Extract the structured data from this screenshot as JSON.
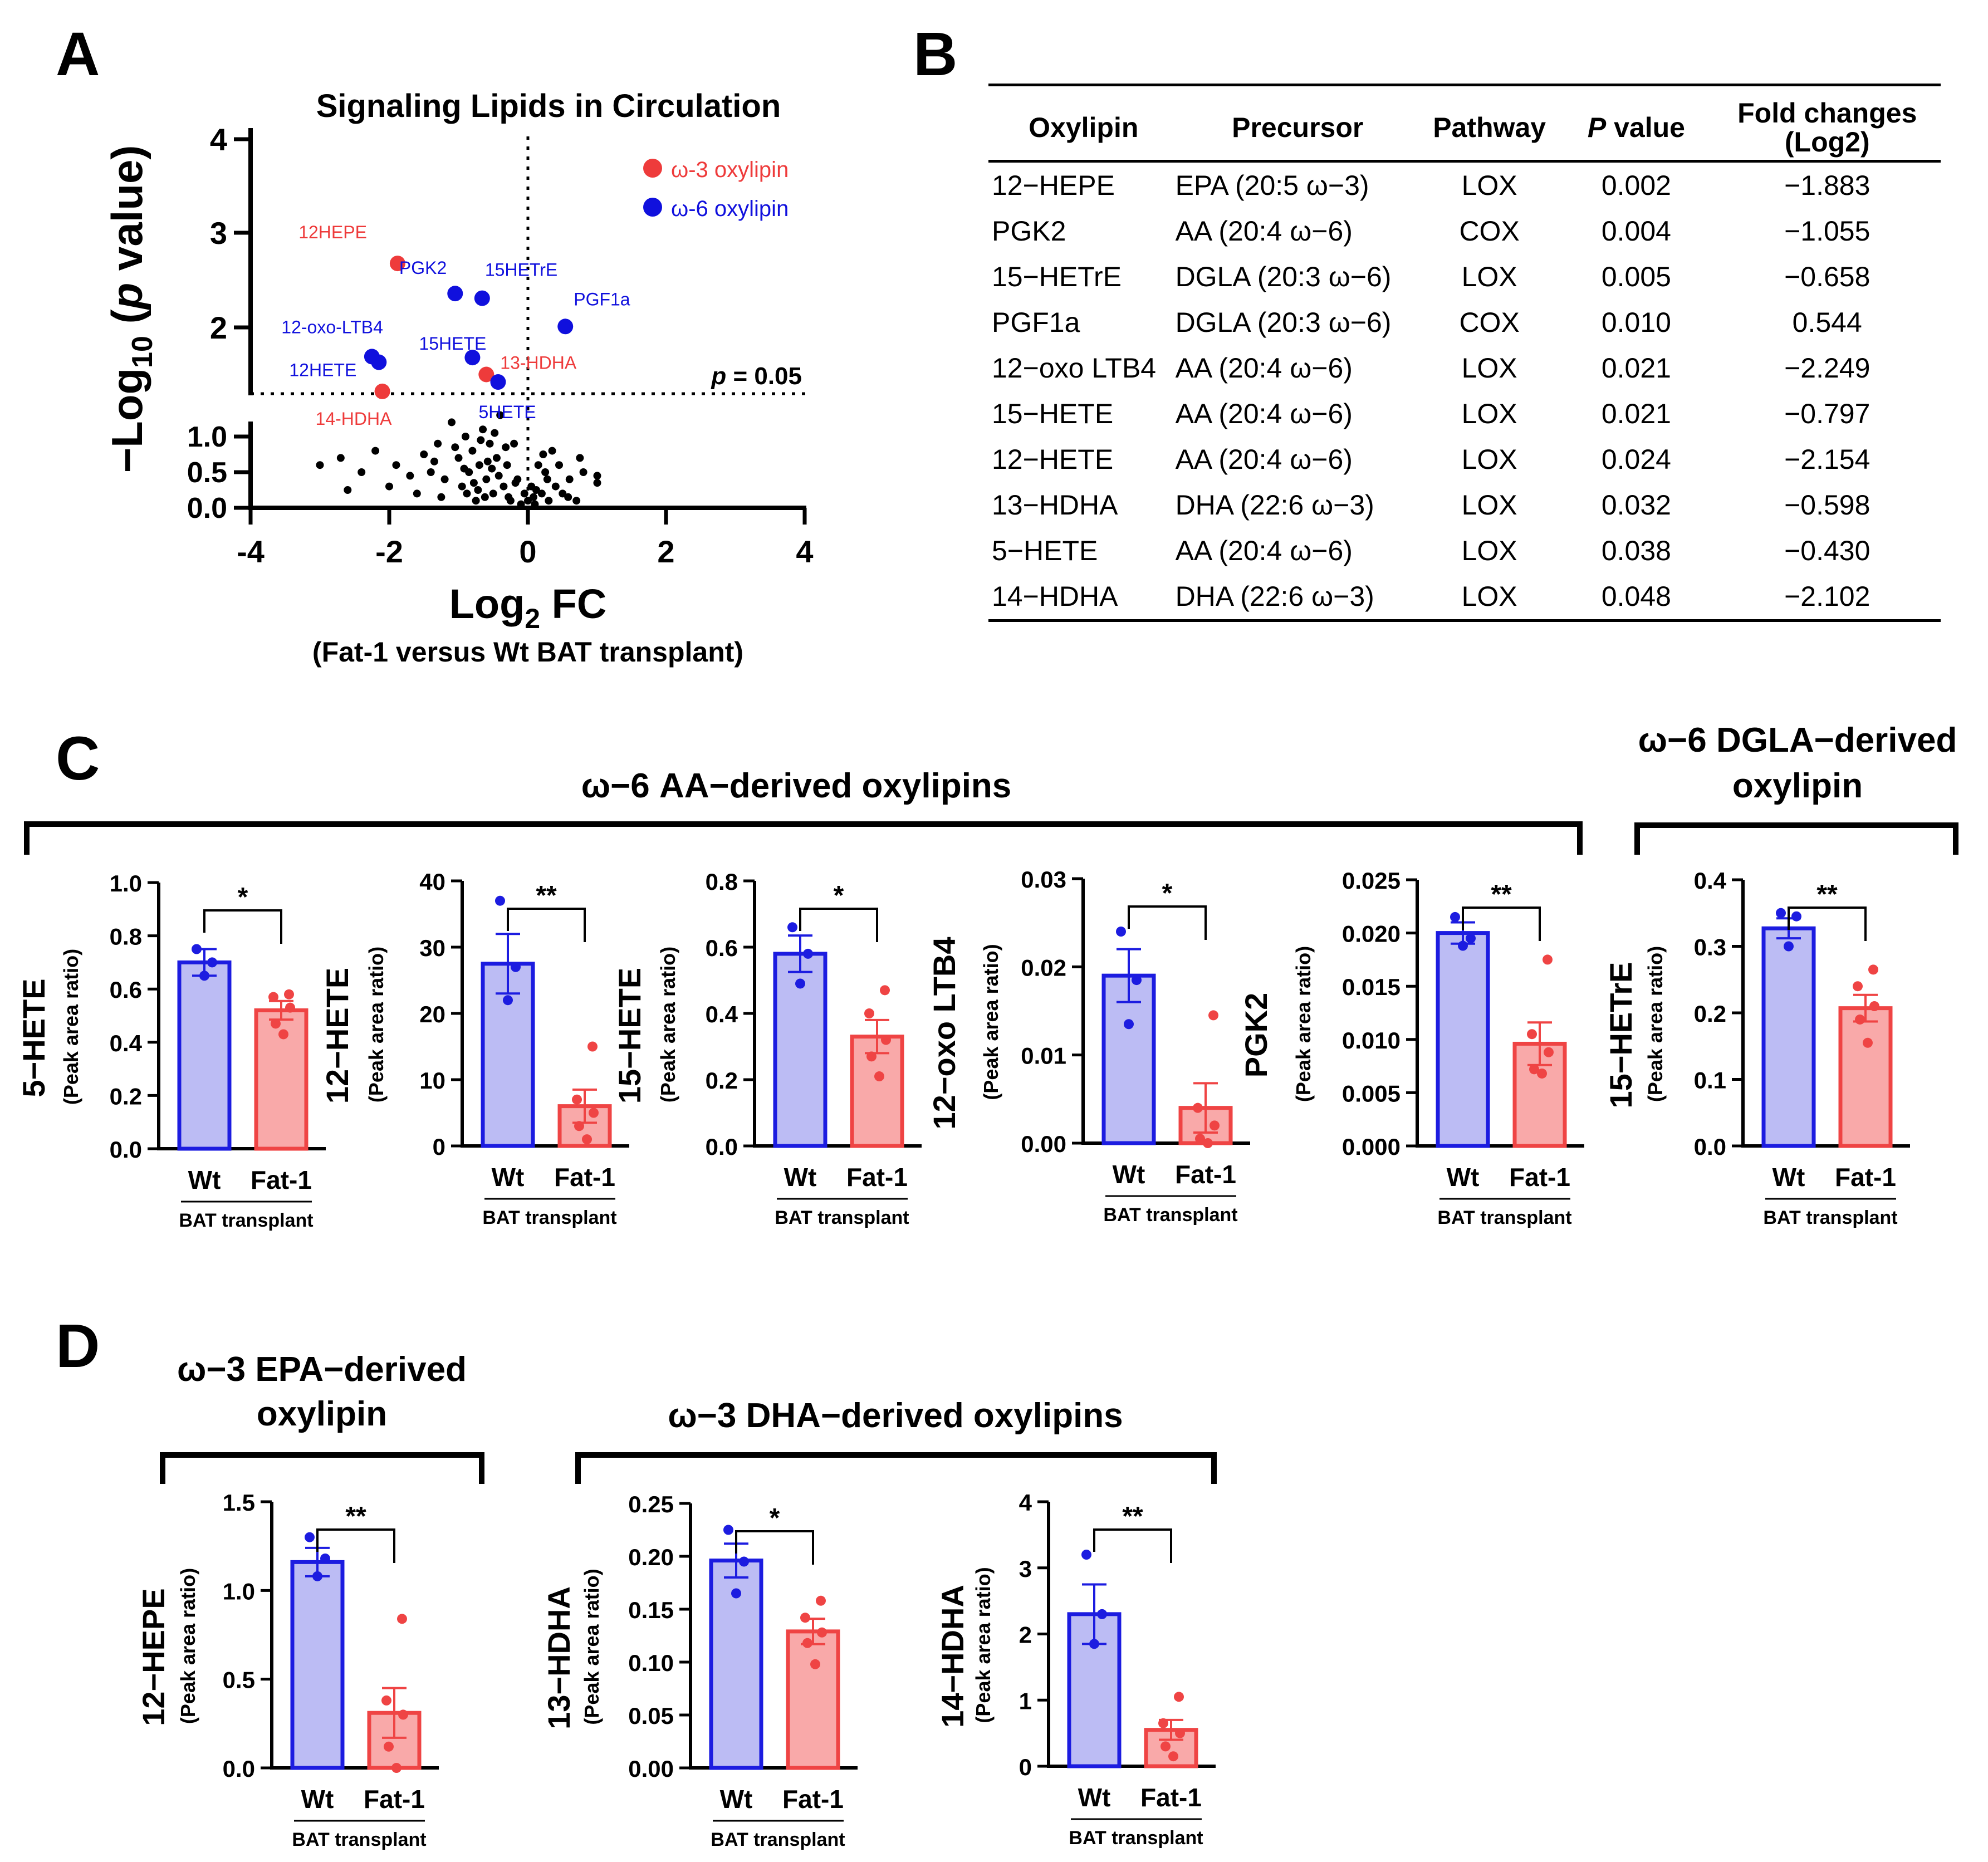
{
  "panels": {
    "A": "A",
    "B": "B",
    "C": "C",
    "D": "D"
  },
  "volcano": {
    "title": "Signaling Lipids in Circulation",
    "ylabel_pre": "−Log",
    "ylabel_sub": "10",
    "ylabel_open": " (",
    "ylabel_p": "p",
    "ylabel_close": " value)",
    "xlabel_pre": "Log",
    "xlabel_sub": "2",
    "xlabel_post": " FC",
    "xlabel_note": "(Fat-1 versus Wt BAT transplant)",
    "xticks": [
      "-4",
      "-2",
      "0",
      "2",
      "4"
    ],
    "yticks_upper": [
      "2",
      "3",
      "4"
    ],
    "yticks_lower": [
      "0.0",
      "0.5",
      "1.0"
    ],
    "threshold_p": "p",
    "threshold_value": " = 0.05",
    "legend": {
      "omega3": "ω-3 oxylipin",
      "omega6": "ω-6 oxylipin",
      "omega3_color": "#ee3b3b",
      "omega6_color": "#1010dd"
    },
    "labeled_points": [
      {
        "label": "12HEPE",
        "x": -1.88,
        "y": 2.68,
        "cls": "omega3"
      },
      {
        "label": "PGK2",
        "x": -1.05,
        "y": 2.36,
        "cls": "omega6"
      },
      {
        "label": "15HETrE",
        "x": -0.66,
        "y": 2.31,
        "cls": "omega6"
      },
      {
        "label": "PGF1a",
        "x": 0.54,
        "y": 2.01,
        "cls": "omega6"
      },
      {
        "label": "12-oxo-LTB4",
        "x": -2.25,
        "y": 1.69,
        "cls": "omega6"
      },
      {
        "label": "15HETE",
        "x": -0.8,
        "y": 1.68,
        "cls": "omega6"
      },
      {
        "label": "12HETE",
        "x": -2.15,
        "y": 1.63,
        "cls": "omega6"
      },
      {
        "label": "13-HDHA",
        "x": -0.6,
        "y": 1.5,
        "cls": "omega3"
      },
      {
        "label": "5HETE",
        "x": -0.43,
        "y": 1.42,
        "cls": "omega6"
      },
      {
        "label": "14-HDHA",
        "x": -2.1,
        "y": 1.32,
        "cls": "omega3"
      }
    ],
    "ns_points": [
      [
        -3.0,
        0.6
      ],
      [
        -2.7,
        0.7
      ],
      [
        -2.4,
        0.5
      ],
      [
        -2.2,
        0.8
      ],
      [
        -2.0,
        0.3
      ],
      [
        -1.9,
        0.6
      ],
      [
        -1.6,
        0.2
      ],
      [
        -1.4,
        0.5
      ],
      [
        -1.3,
        0.9
      ],
      [
        -1.2,
        0.4
      ],
      [
        -1.1,
        1.2
      ],
      [
        -1.0,
        0.7
      ],
      [
        -0.95,
        0.3
      ],
      [
        -0.9,
        1.0
      ],
      [
        -0.85,
        0.5
      ],
      [
        -0.8,
        0.8
      ],
      [
        -0.75,
        0.1
      ],
      [
        -0.7,
        0.6
      ],
      [
        -0.65,
        1.1
      ],
      [
        -0.6,
        0.4
      ],
      [
        -0.55,
        0.9
      ],
      [
        -0.5,
        0.2
      ],
      [
        -0.45,
        0.7
      ],
      [
        -0.4,
        1.3
      ],
      [
        -0.35,
        0.3
      ],
      [
        -0.3,
        0.6
      ],
      [
        -0.25,
        0.1
      ],
      [
        -0.2,
        0.9
      ],
      [
        -0.15,
        0.4
      ],
      [
        -0.1,
        0.05
      ],
      [
        -0.05,
        0.2
      ],
      [
        0.0,
        0.1
      ],
      [
        0.05,
        0.3
      ],
      [
        0.1,
        0.05
      ],
      [
        0.15,
        0.6
      ],
      [
        0.2,
        0.2
      ],
      [
        0.25,
        0.5
      ],
      [
        0.3,
        0.1
      ],
      [
        0.35,
        0.8
      ],
      [
        0.4,
        0.3
      ],
      [
        0.5,
        0.2
      ],
      [
        0.6,
        0.4
      ],
      [
        0.7,
        0.1
      ],
      [
        0.8,
        0.5
      ],
      [
        1.0,
        0.45
      ],
      [
        1.0,
        0.35
      ],
      [
        -1.7,
        0.45
      ],
      [
        -1.5,
        0.75
      ],
      [
        -1.25,
        0.15
      ],
      [
        -0.92,
        0.55
      ],
      [
        -0.72,
        0.25
      ],
      [
        -0.58,
        0.65
      ],
      [
        -0.42,
        0.45
      ],
      [
        -0.32,
        0.85
      ],
      [
        -0.18,
        0.35
      ],
      [
        0.12,
        0.25
      ],
      [
        0.28,
        0.4
      ],
      [
        0.45,
        0.6
      ],
      [
        -2.6,
        0.25
      ],
      [
        -0.68,
        0.95
      ],
      [
        -1.05,
        0.85
      ],
      [
        -0.78,
        0.35
      ],
      [
        -0.52,
        0.55
      ],
      [
        -0.28,
        0.15
      ],
      [
        0.08,
        0.15
      ],
      [
        0.22,
        0.75
      ],
      [
        -1.35,
        0.65
      ],
      [
        -0.88,
        0.2
      ],
      [
        -0.62,
        0.15
      ],
      [
        -0.48,
        1.05
      ],
      [
        0.58,
        0.15
      ],
      [
        0.75,
        0.7
      ]
    ]
  },
  "table": {
    "headers": {
      "oxylipin": "Oxylipin",
      "precursor": "Precursor",
      "pathway": "Pathway",
      "p_italic": "P",
      "p_rest": " value",
      "fold_line1": "Fold changes",
      "fold_line2": "(Log2)"
    },
    "rows": [
      {
        "oxylipin": "12−HEPE",
        "precursor": "EPA (20:5 ω−3)",
        "pathway": "LOX",
        "p": "0.002",
        "fold": "−1.883"
      },
      {
        "oxylipin": "PGK2",
        "precursor": "AA (20:4 ω−6)",
        "pathway": "COX",
        "p": "0.004",
        "fold": "−1.055"
      },
      {
        "oxylipin": "15−HETrE",
        "precursor": "DGLA (20:3 ω−6)",
        "pathway": "LOX",
        "p": "0.005",
        "fold": "−0.658"
      },
      {
        "oxylipin": "PGF1a",
        "precursor": "DGLA (20:3 ω−6)",
        "pathway": "COX",
        "p": "0.010",
        "fold": "0.544"
      },
      {
        "oxylipin": "12−oxo LTB4",
        "precursor": "AA (20:4 ω−6)",
        "pathway": "LOX",
        "p": "0.021",
        "fold": "−2.249"
      },
      {
        "oxylipin": "15−HETE",
        "precursor": "AA (20:4 ω−6)",
        "pathway": "LOX",
        "p": "0.021",
        "fold": "−0.797"
      },
      {
        "oxylipin": "12−HETE",
        "precursor": "AA (20:4 ω−6)",
        "pathway": "LOX",
        "p": "0.024",
        "fold": "−2.154"
      },
      {
        "oxylipin": "13−HDHA",
        "precursor": "DHA (22:6 ω−3)",
        "pathway": "LOX",
        "p": "0.032",
        "fold": "−0.598"
      },
      {
        "oxylipin": "5−HETE",
        "precursor": "AA (20:4 ω−6)",
        "pathway": "LOX",
        "p": "0.038",
        "fold": "−0.430"
      },
      {
        "oxylipin": "14−HDHA",
        "precursor": "DHA (22:6 ω−3)",
        "pathway": "LOX",
        "p": "0.048",
        "fold": "−2.102"
      }
    ]
  },
  "groups": {
    "aa": "ω−6 AA−derived oxylipins",
    "dgla_line1": "ω−6 DGLA−derived",
    "dgla_line2": "oxylipin",
    "epa_line1": "ω−3 EPA−derived",
    "epa_line2": "oxylipin",
    "dha": "ω−3 DHA−derived oxylipins"
  },
  "bar_common": {
    "ylabel_sub": "(Peak area ratio)",
    "wt": "Wt",
    "fat": "Fat-1",
    "bat": "BAT transplant",
    "wt_color": "#1c1ce0",
    "wt_fill": "#bcbcf4",
    "fat_color": "#ef4444",
    "fat_fill": "#f9a9a9"
  },
  "chart_data": [
    {
      "type": "scatter",
      "title": "Signaling Lipids in Circulation",
      "xlabel": "Log2 FC (Fat-1 versus Wt BAT transplant)",
      "ylabel": "−Log10 (p value)",
      "xlim": [
        -4,
        4
      ],
      "ylim_lower": [
        0,
        1.2
      ],
      "ylim_upper": [
        1.3,
        4
      ],
      "threshold": "p = 0.05"
    },
    {
      "type": "bar",
      "id": "hete5",
      "ylabel": "5−HETE",
      "categories": [
        "Wt",
        "Fat-1"
      ],
      "values": [
        0.7,
        0.52
      ],
      "sem": [
        0.05,
        0.035
      ],
      "ylim": [
        0,
        1.0
      ],
      "yticks": [
        "0.0",
        "0.2",
        "0.4",
        "0.6",
        "0.8",
        "1.0"
      ],
      "wt_points": [
        0.75,
        0.7,
        0.65
      ],
      "fat_points": [
        0.58,
        0.57,
        0.53,
        0.47,
        0.43
      ],
      "sig": "*"
    },
    {
      "type": "bar",
      "id": "hete12",
      "ylabel": "12−HETE",
      "categories": [
        "Wt",
        "Fat-1"
      ],
      "values": [
        27.5,
        6.0
      ],
      "sem": [
        4.5,
        2.5
      ],
      "ylim": [
        0,
        40
      ],
      "yticks": [
        "0",
        "10",
        "20",
        "30",
        "40"
      ],
      "wt_points": [
        37,
        27,
        22
      ],
      "fat_points": [
        15,
        7,
        5,
        3,
        1
      ],
      "sig": "**"
    },
    {
      "type": "bar",
      "id": "hete15",
      "ylabel": "15−HETE",
      "categories": [
        "Wt",
        "Fat-1"
      ],
      "values": [
        0.58,
        0.33
      ],
      "sem": [
        0.055,
        0.05
      ],
      "ylim": [
        0,
        0.8
      ],
      "yticks": [
        "0.0",
        "0.2",
        "0.4",
        "0.6",
        "0.8"
      ],
      "wt_points": [
        0.66,
        0.58,
        0.49
      ],
      "fat_points": [
        0.47,
        0.4,
        0.32,
        0.27,
        0.21
      ],
      "sig": "*"
    },
    {
      "type": "bar",
      "id": "oxoltb4",
      "ylabel": "12−oxo LTB4",
      "categories": [
        "Wt",
        "Fat-1"
      ],
      "values": [
        0.019,
        0.004
      ],
      "sem": [
        0.003,
        0.0028
      ],
      "ylim": [
        0,
        0.03
      ],
      "yticks": [
        "0.00",
        "0.01",
        "0.02",
        "0.03"
      ],
      "wt_points": [
        0.024,
        0.0185,
        0.0135
      ],
      "fat_points": [
        0.0145,
        0.004,
        0.002,
        0.0005,
        0.0
      ],
      "sig": "*"
    },
    {
      "type": "bar",
      "id": "pgk2",
      "ylabel": "PGK2",
      "categories": [
        "Wt",
        "Fat-1"
      ],
      "values": [
        0.02,
        0.0096
      ],
      "sem": [
        0.001,
        0.002
      ],
      "ylim": [
        0,
        0.025
      ],
      "yticks": [
        "0.000",
        "0.005",
        "0.010",
        "0.015",
        "0.020",
        "0.025"
      ],
      "wt_points": [
        0.0215,
        0.0195,
        0.0188
      ],
      "fat_points": [
        0.0175,
        0.0105,
        0.0088,
        0.0072,
        0.0068
      ],
      "sig": "**"
    },
    {
      "type": "bar",
      "id": "hetre15",
      "ylabel": "15−HETrE",
      "categories": [
        "Wt",
        "Fat-1"
      ],
      "values": [
        0.327,
        0.207
      ],
      "sem": [
        0.015,
        0.02
      ],
      "ylim": [
        0,
        0.4
      ],
      "yticks": [
        "0.0",
        "0.1",
        "0.2",
        "0.3",
        "0.4"
      ],
      "wt_points": [
        0.35,
        0.345,
        0.3
      ],
      "fat_points": [
        0.265,
        0.24,
        0.21,
        0.19,
        0.155
      ],
      "sig": "**"
    },
    {
      "type": "bar",
      "id": "hepe12",
      "ylabel": "12−HEPE",
      "categories": [
        "Wt",
        "Fat-1"
      ],
      "values": [
        1.16,
        0.31
      ],
      "sem": [
        0.08,
        0.14
      ],
      "ylim": [
        0,
        1.5
      ],
      "yticks": [
        "0.0",
        "0.5",
        "1.0",
        "1.5"
      ],
      "wt_points": [
        1.3,
        1.18,
        1.08
      ],
      "fat_points": [
        0.84,
        0.38,
        0.3,
        0.12,
        0.0
      ],
      "sig": "**"
    },
    {
      "type": "bar",
      "id": "hdha13",
      "ylabel": "13−HDHA",
      "categories": [
        "Wt",
        "Fat-1"
      ],
      "values": [
        0.196,
        0.129
      ],
      "sem": [
        0.016,
        0.012
      ],
      "ylim": [
        0,
        0.25
      ],
      "yticks": [
        "0.00",
        "0.05",
        "0.10",
        "0.15",
        "0.20",
        "0.25"
      ],
      "wt_points": [
        0.225,
        0.195,
        0.165
      ],
      "fat_points": [
        0.158,
        0.142,
        0.128,
        0.118,
        0.098
      ],
      "sig": "*"
    },
    {
      "type": "bar",
      "id": "hdha14",
      "ylabel": "14−HDHA",
      "categories": [
        "Wt",
        "Fat-1"
      ],
      "values": [
        2.3,
        0.55
      ],
      "sem": [
        0.45,
        0.15
      ],
      "ylim": [
        0,
        4
      ],
      "yticks": [
        "0",
        "1",
        "2",
        "3",
        "4"
      ],
      "wt_points": [
        3.2,
        2.3,
        1.85
      ],
      "fat_points": [
        1.05,
        0.65,
        0.5,
        0.3,
        0.15
      ],
      "sig": "**"
    }
  ]
}
